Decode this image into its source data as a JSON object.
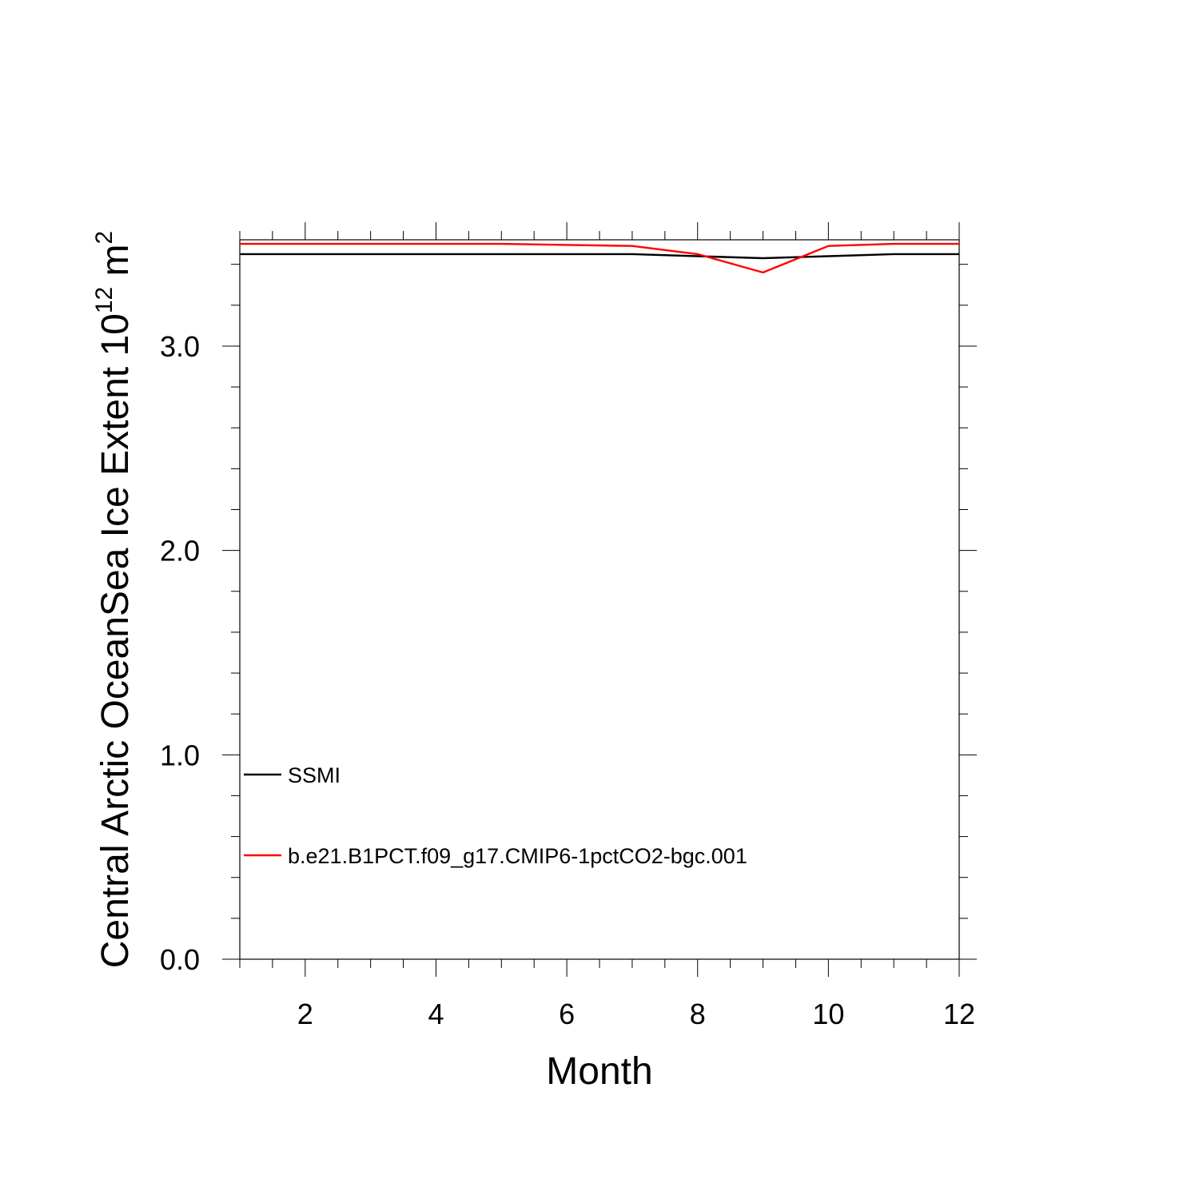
{
  "chart_data": {
    "type": "line",
    "title": "",
    "xlabel": "Month",
    "ylabel": {
      "base": "Central Arctic OceanSea Ice Extent 10",
      "exp1": "12",
      "unit": " m",
      "exp2": "2"
    },
    "xlim": [
      1,
      12
    ],
    "ylim": [
      0,
      3.52
    ],
    "x_ticks": [
      2,
      4,
      6,
      8,
      10,
      12
    ],
    "x_tick_labels": [
      "2",
      "4",
      "6",
      "8",
      "10",
      "12"
    ],
    "y_ticks": [
      0,
      1,
      2,
      3
    ],
    "y_tick_labels": [
      "0.0",
      "1.0",
      "2.0",
      "3.0"
    ],
    "grid": false,
    "legend_position": "lower-left inside",
    "x": [
      1,
      2,
      3,
      4,
      5,
      6,
      7,
      8,
      9,
      10,
      11,
      12
    ],
    "series": [
      {
        "name": "SSMI",
        "color": "#000000",
        "values": [
          3.45,
          3.45,
          3.45,
          3.45,
          3.45,
          3.45,
          3.45,
          3.44,
          3.43,
          3.44,
          3.45,
          3.45
        ]
      },
      {
        "name": "b.e21.B1PCT.f09_g17.CMIP6-1pctCO2-bgc.001",
        "color": "#ff0000",
        "values": [
          3.5,
          3.5,
          3.5,
          3.5,
          3.5,
          3.495,
          3.49,
          3.45,
          3.36,
          3.49,
          3.5,
          3.5
        ]
      }
    ]
  }
}
